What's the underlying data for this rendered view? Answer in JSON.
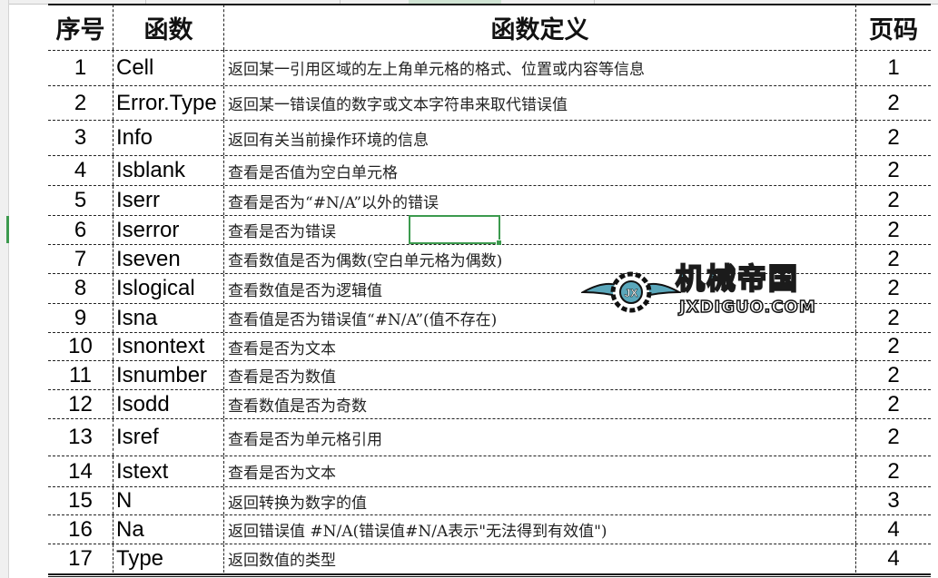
{
  "table": {
    "headers": [
      "序号",
      "函数",
      "函数定义",
      "页码"
    ],
    "rows": [
      {
        "no": "1",
        "func": "Cell",
        "def": "返回某一引用区域的左上角单元格的格式、位置或内容等信息",
        "page": "1"
      },
      {
        "no": "2",
        "func": "Error.Type",
        "def": "返回某一错误值的数字或文本字符串来取代错误值",
        "page": "2"
      },
      {
        "no": "3",
        "func": "Info",
        "def": "返回有关当前操作环境的信息",
        "page": "2"
      },
      {
        "no": "4",
        "func": "Isblank",
        "def": "查看是否值为空白单元格",
        "page": "2"
      },
      {
        "no": "5",
        "func": "Iserr",
        "def": "查看是否为“#N/A”以外的错误",
        "page": "2"
      },
      {
        "no": "6",
        "func": "Iserror",
        "def": "查看是否为错误",
        "page": "2"
      },
      {
        "no": "7",
        "func": "Iseven",
        "def": "查看数值是否为偶数(空白单元格为偶数)",
        "page": "2"
      },
      {
        "no": "8",
        "func": "Islogical",
        "def": "查看数值是否为逻辑值",
        "page": "2"
      },
      {
        "no": "9",
        "func": "Isna",
        "def": "查看值是否为错误值“#N/A”(值不存在)",
        "page": "2"
      },
      {
        "no": "10",
        "func": "Isnontext",
        "def": "查看是否为文本",
        "page": "2"
      },
      {
        "no": "11",
        "func": "Isnumber",
        "def": "查看是否为数值",
        "page": "2"
      },
      {
        "no": "12",
        "func": "Isodd",
        "def": "查看数值是否为奇数",
        "page": "2"
      },
      {
        "no": "13",
        "func": "Isref",
        "def": "查看是否为单元格引用",
        "page": "2"
      },
      {
        "no": "14",
        "func": "Istext",
        "def": "查看是否为文本",
        "page": "2"
      },
      {
        "no": "15",
        "func": "N",
        "def": "返回转换为数字的值",
        "page": "3"
      },
      {
        "no": "16",
        "func": "Na",
        "def": "返回错误值 #N/A(错误值#N/A表示\"无法得到有效值\")",
        "page": "4"
      },
      {
        "no": "17",
        "func": "Type",
        "def": "返回数值的类型",
        "page": "4"
      }
    ]
  },
  "watermark": {
    "cn": "机械帝国",
    "en": "JXDIGUO.COM",
    "badge": "JX"
  },
  "colors": {
    "selection": "#3c9a4e",
    "watermark": "#5aa7bb"
  }
}
